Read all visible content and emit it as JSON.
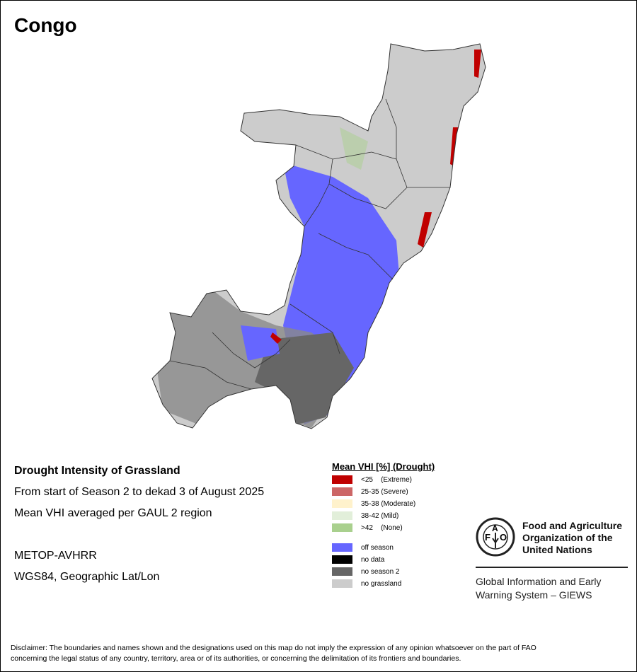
{
  "title": "Congo",
  "info": {
    "line1": "Drought Intensity of Grassland",
    "line2": "From start of Season 2 to dekad 3 of August 2025",
    "line3": "Mean VHI averaged per GAUL 2 region",
    "sensor": "METOP-AVHRR",
    "projection": "WGS84, Geographic Lat/Lon"
  },
  "legend": {
    "title": "Mean VHI [%] (Drought)",
    "items": [
      {
        "label": "<25    (Extreme)",
        "color": "#c00000"
      },
      {
        "label": "25-35 (Severe)",
        "color": "#cc6666"
      },
      {
        "label": "35-38 (Moderate)",
        "color": "#fff2cc"
      },
      {
        "label": "38-42 (Mild)",
        "color": "#e2efda"
      },
      {
        "label": ">42    (None)",
        "color": "#a9d08e"
      },
      {
        "label": "off season",
        "color": "#6666ff"
      },
      {
        "label": "no data",
        "color": "#000000"
      },
      {
        "label": "no season 2",
        "color": "#666666"
      },
      {
        "label": "no grassland",
        "color": "#cccccc"
      }
    ]
  },
  "org": {
    "logo_text": "FAO FIAT PANIS",
    "name_line1": "Food and Agriculture",
    "name_line2": "Organization of the",
    "name_line3": "United Nations",
    "giews_line1": "Global Information and Early",
    "giews_line2": "Warning System – GIEWS"
  },
  "disclaimer": {
    "line1": "Disclaimer: The boundaries and names shown and the designations used on this map do not imply the expression of any opinion whatsoever on the part of FAO",
    "line2": "concerning the legal status of any country, territory, area or of its authorities, or concerning the delimitation of its frontiers and boundaries."
  }
}
